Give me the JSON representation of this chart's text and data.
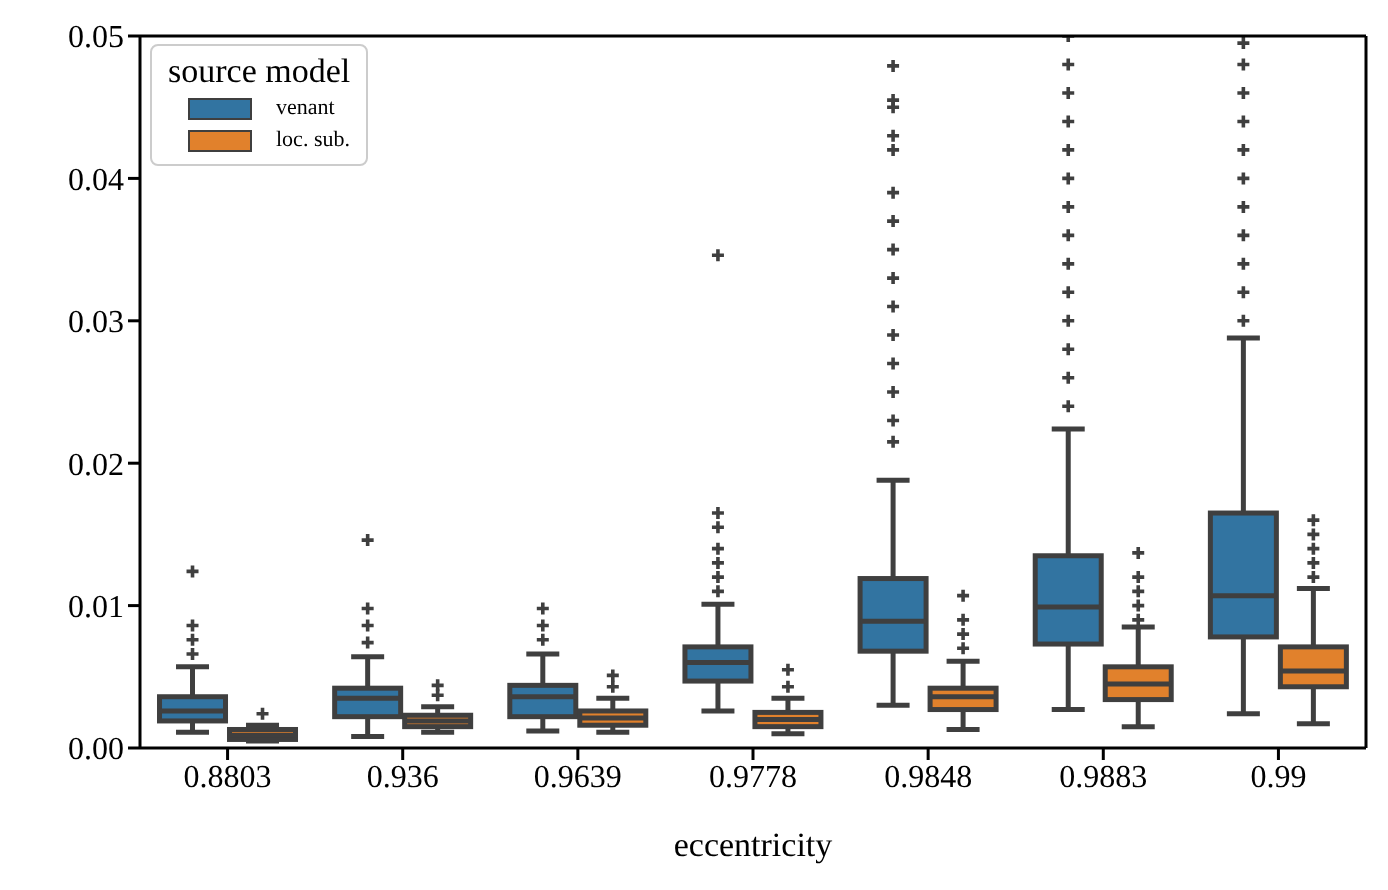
{
  "chart_data": {
    "type": "box",
    "xlabel": "eccentricity",
    "legend_title": "source model",
    "legend": "top left",
    "grid": false,
    "categories": [
      "0.8803",
      "0.936",
      "0.9639",
      "0.9778",
      "0.9848",
      "0.9883",
      "0.99"
    ],
    "ylim": [
      0,
      0.05
    ],
    "yticks": [
      {
        "value": 0,
        "label": "0.00"
      },
      0.01,
      0.02,
      0.03,
      0.04,
      0.05
    ],
    "series": [
      {
        "name": "venant",
        "color": "#3274a1",
        "boxes": [
          {
            "low": 0.0011,
            "q1": 0.0019,
            "median": 0.0026,
            "q3": 0.0036,
            "high": 0.0057,
            "outliers": [
              0.0066,
              0.0076,
              0.0086,
              0.0124
            ]
          },
          {
            "low": 0.0008,
            "q1": 0.0022,
            "median": 0.0035,
            "q3": 0.0042,
            "high": 0.0064,
            "outliers": [
              0.0074,
              0.0086,
              0.0098,
              0.0146
            ]
          },
          {
            "low": 0.0012,
            "q1": 0.0022,
            "median": 0.0036,
            "q3": 0.0044,
            "high": 0.0066,
            "outliers": [
              0.0076,
              0.0086,
              0.0098
            ]
          },
          {
            "low": 0.0026,
            "q1": 0.0047,
            "median": 0.006,
            "q3": 0.0071,
            "high": 0.0101,
            "outliers": [
              0.011,
              0.012,
              0.013,
              0.014,
              0.0155,
              0.0165,
              0.0346
            ]
          },
          {
            "low": 0.003,
            "q1": 0.0068,
            "median": 0.0089,
            "q3": 0.0119,
            "high": 0.0188,
            "outliers": [
              0.0215,
              0.023,
              0.025,
              0.027,
              0.029,
              0.031,
              0.033,
              0.035,
              0.037,
              0.039,
              0.042,
              0.043,
              0.045,
              0.0455,
              0.0479
            ]
          },
          {
            "low": 0.0027,
            "q1": 0.0073,
            "median": 0.0099,
            "q3": 0.0135,
            "high": 0.0224,
            "outliers": [
              0.024,
              0.026,
              0.028,
              0.03,
              0.032,
              0.034,
              0.036,
              0.038,
              0.04,
              0.042,
              0.044,
              0.046,
              0.048,
              0.05
            ]
          },
          {
            "low": 0.0024,
            "q1": 0.0078,
            "median": 0.0107,
            "q3": 0.0165,
            "high": 0.0288,
            "outliers": [
              0.03,
              0.032,
              0.034,
              0.036,
              0.038,
              0.04,
              0.042,
              0.044,
              0.046,
              0.048,
              0.0495
            ]
          }
        ]
      },
      {
        "name": "loc. sub.",
        "color": "#e1812c",
        "boxes": [
          {
            "low": 0.0005,
            "q1": 0.0006,
            "median": 0.0009,
            "q3": 0.0013,
            "high": 0.0016,
            "outliers": [
              0.0024
            ]
          },
          {
            "low": 0.0011,
            "q1": 0.0015,
            "median": 0.0019,
            "q3": 0.0023,
            "high": 0.0029,
            "outliers": [
              0.0037,
              0.0044
            ]
          },
          {
            "low": 0.0011,
            "q1": 0.0016,
            "median": 0.0021,
            "q3": 0.0026,
            "high": 0.0035,
            "outliers": [
              0.0043,
              0.0051
            ]
          },
          {
            "low": 0.001,
            "q1": 0.0015,
            "median": 0.002,
            "q3": 0.0025,
            "high": 0.0035,
            "outliers": [
              0.0043,
              0.0055
            ]
          },
          {
            "low": 0.0013,
            "q1": 0.0027,
            "median": 0.0036,
            "q3": 0.0042,
            "high": 0.0061,
            "outliers": [
              0.007,
              0.008,
              0.009,
              0.0107
            ]
          },
          {
            "low": 0.0015,
            "q1": 0.0034,
            "median": 0.0045,
            "q3": 0.0057,
            "high": 0.0085,
            "outliers": [
              0.009,
              0.01,
              0.011,
              0.012,
              0.0137
            ]
          },
          {
            "low": 0.0017,
            "q1": 0.0043,
            "median": 0.0054,
            "q3": 0.0071,
            "high": 0.0112,
            "outliers": [
              0.012,
              0.013,
              0.014,
              0.015,
              0.016
            ]
          }
        ]
      }
    ]
  }
}
